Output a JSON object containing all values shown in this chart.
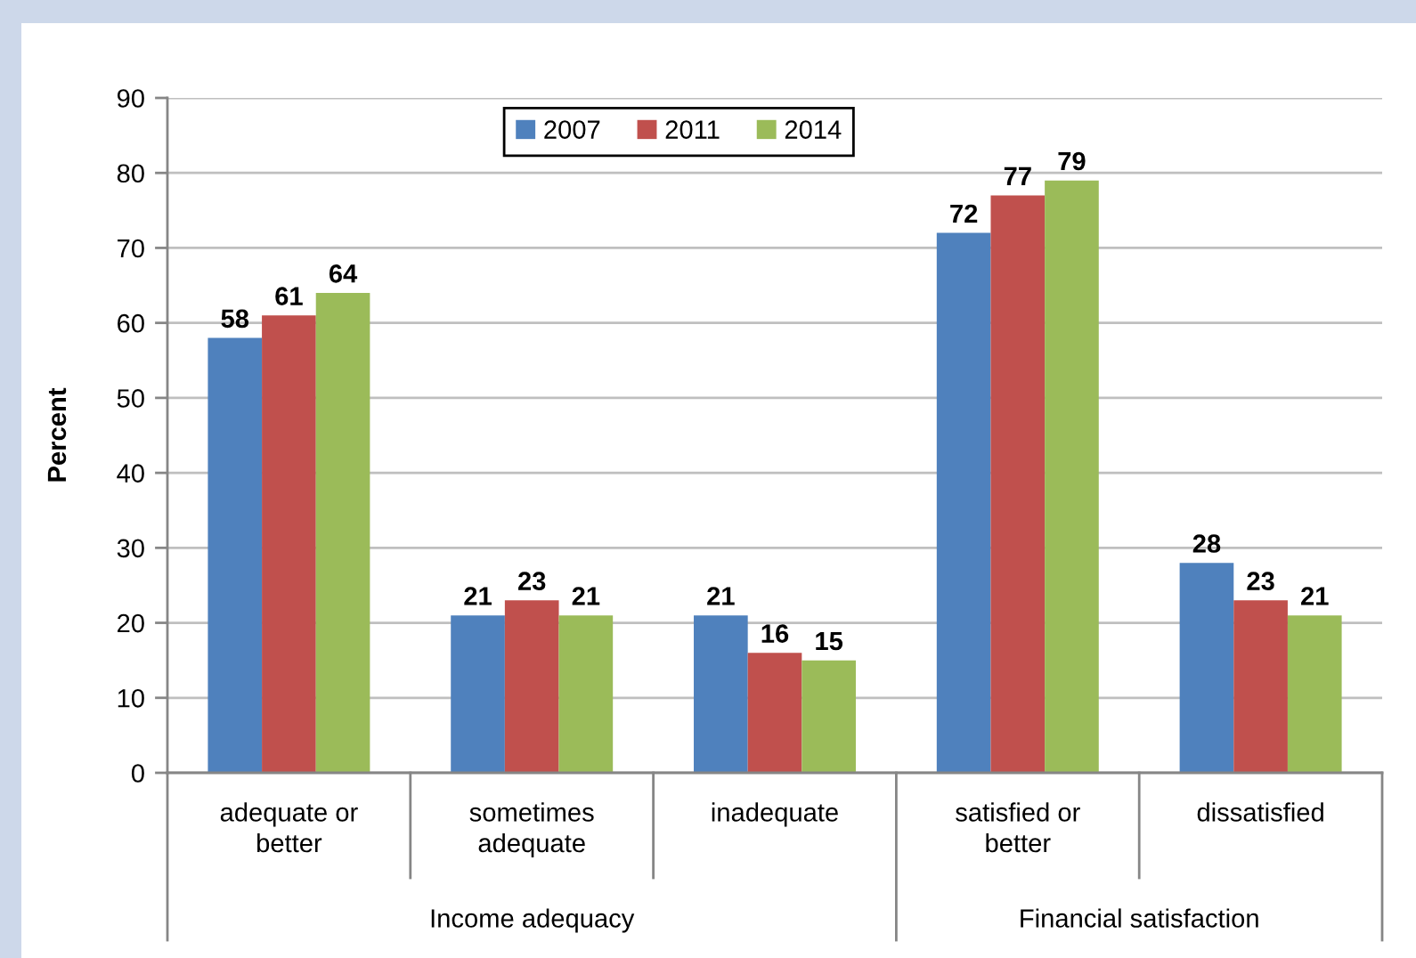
{
  "chart_data": {
    "type": "bar",
    "ylabel": "Percent",
    "categories": [
      "adequate or\nbetter",
      "sometimes\nadequate",
      "inadequate",
      "satisfied or\nbetter",
      "dissatisfied"
    ],
    "series": [
      {
        "name": "2007",
        "color": "#4f81bd",
        "values": [
          58,
          21,
          21,
          72,
          28
        ]
      },
      {
        "name": "2011",
        "color": "#c0504d",
        "values": [
          61,
          23,
          16,
          77,
          23
        ]
      },
      {
        "name": "2014",
        "color": "#9bbb59",
        "values": [
          64,
          21,
          15,
          79,
          21
        ]
      }
    ],
    "ylim": [
      0,
      90
    ],
    "yticks": [
      0,
      10,
      20,
      30,
      40,
      50,
      60,
      70,
      80,
      90
    ],
    "grid": "y",
    "legend": "top",
    "data_labels": true,
    "annotations": [
      "Income adequacy",
      "Financial satisfaction"
    ]
  }
}
